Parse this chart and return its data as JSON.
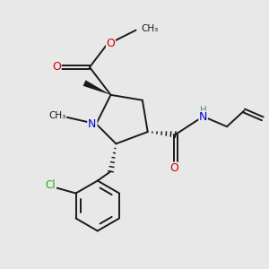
{
  "bg_color": "#e8e8e8",
  "atom_colors": {
    "O": "#cc0000",
    "N": "#0000cc",
    "Cl": "#22aa22",
    "C": "#1a1a1a",
    "H": "#558888"
  },
  "bond_color": "#1a1a1a"
}
